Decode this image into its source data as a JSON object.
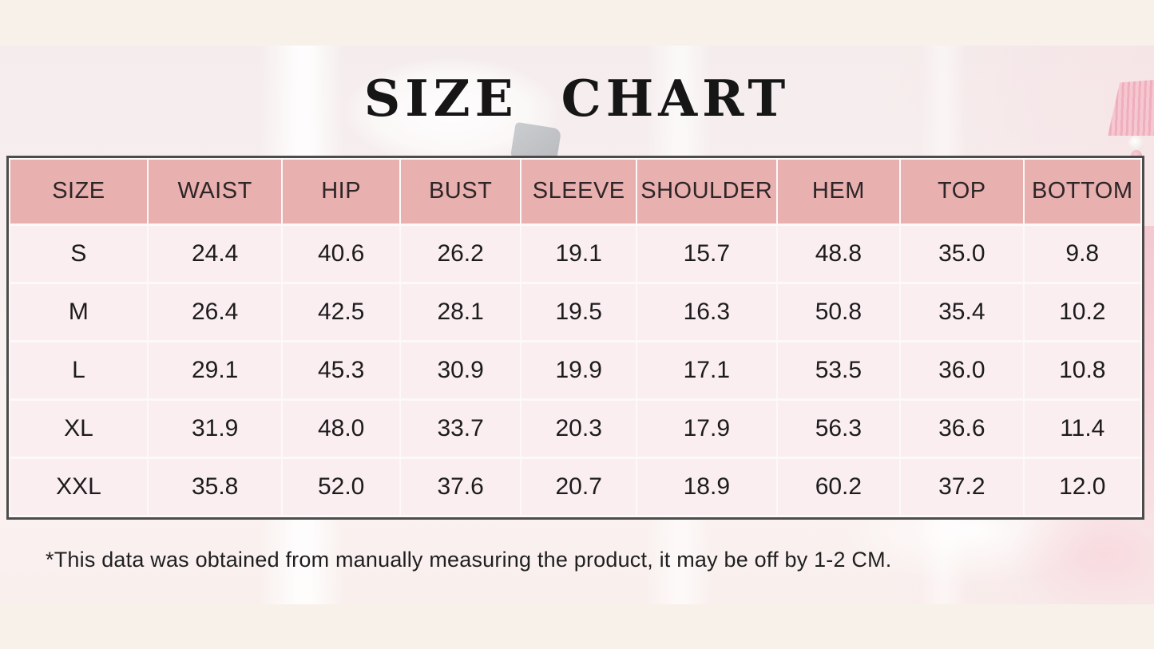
{
  "page": {
    "title": "SIZE CHART",
    "footnote": "*This data was obtained from manually measuring the product, it may be off by 1-2 CM."
  },
  "chart_data": {
    "type": "table",
    "columns": [
      "SIZE",
      "WAIST",
      "HIP",
      "BUST",
      "SLEEVE",
      "SHOULDER",
      "HEM",
      "TOP",
      "BOTTOM"
    ],
    "rows": [
      {
        "size": "S",
        "values": [
          "24.4",
          "40.6",
          "26.2",
          "19.1",
          "15.7",
          "48.8",
          "35.0",
          "9.8"
        ]
      },
      {
        "size": "M",
        "values": [
          "26.4",
          "42.5",
          "28.1",
          "19.5",
          "16.3",
          "50.8",
          "35.4",
          "10.2"
        ]
      },
      {
        "size": "L",
        "values": [
          "29.1",
          "45.3",
          "30.9",
          "19.9",
          "17.1",
          "53.5",
          "36.0",
          "10.8"
        ]
      },
      {
        "size": "XL",
        "values": [
          "31.9",
          "48.0",
          "33.7",
          "20.3",
          "17.9",
          "56.3",
          "36.6",
          "11.4"
        ]
      },
      {
        "size": "XXL",
        "values": [
          "35.8",
          "52.0",
          "37.6",
          "20.7",
          "18.9",
          "60.2",
          "37.2",
          "12.0"
        ]
      }
    ]
  },
  "colors": {
    "header_bg": "#e9b0b0",
    "row_bg": "#faeef0",
    "table_border": "#4c4c4c",
    "band_bg": "#f8f1ea",
    "photo_bg": "#f8f0f0",
    "lamp_pink": "#f4c3cd",
    "title_color": "#161616"
  },
  "decor": {
    "lamp": "pink pleated table lamp at right edge"
  }
}
